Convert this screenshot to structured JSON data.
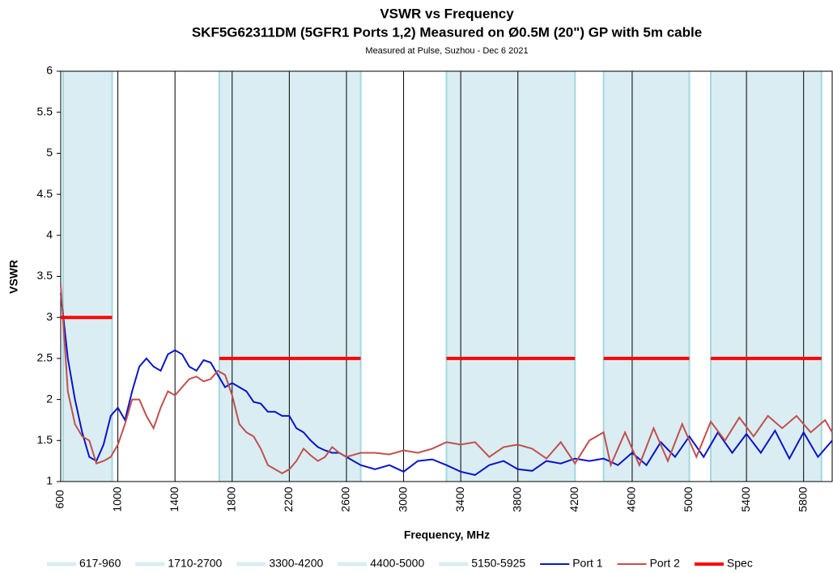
{
  "chart_data": {
    "type": "line",
    "title": "VSWR vs Frequency",
    "subtitle": "SKF5G62311DM (5GFR1 Ports 1,2) Measured on Ø0.5M (20\") GP with 5m cable",
    "note": "Measured at Pulse, Suzhou  - Dec 6 2021",
    "xlabel": "Frequency, MHz",
    "ylabel": "VSWR",
    "xlim": [
      600,
      6000
    ],
    "ylim": [
      1,
      6
    ],
    "xticks": [
      600,
      1000,
      1400,
      1800,
      2200,
      2600,
      3000,
      3400,
      3800,
      4200,
      4600,
      5000,
      5400,
      5800
    ],
    "yticks": [
      1,
      1.5,
      2,
      2.5,
      3,
      3.5,
      4,
      4.5,
      5,
      5.5,
      6
    ],
    "band_color": "#daedf3",
    "band_edge": "#a3d8e0",
    "bands": [
      {
        "name": "617-960",
        "from": 617,
        "to": 960
      },
      {
        "name": "1710-2700",
        "from": 1710,
        "to": 2700
      },
      {
        "name": "3300-4200",
        "from": 3300,
        "to": 4200
      },
      {
        "name": "4400-5000",
        "from": 4400,
        "to": 5000
      },
      {
        "name": "5150-5925",
        "from": 5150,
        "to": 5925
      }
    ],
    "series": [
      {
        "name": "Port 1",
        "color": "#0a14c8",
        "width": 2,
        "x": [
          600,
          650,
          700,
          750,
          800,
          850,
          900,
          950,
          1000,
          1050,
          1100,
          1150,
          1200,
          1250,
          1300,
          1350,
          1400,
          1450,
          1500,
          1550,
          1600,
          1650,
          1700,
          1750,
          1800,
          1850,
          1900,
          1950,
          2000,
          2050,
          2100,
          2150,
          2200,
          2250,
          2300,
          2350,
          2400,
          2450,
          2500,
          2550,
          2600,
          2700,
          2800,
          2900,
          3000,
          3100,
          3200,
          3300,
          3400,
          3500,
          3600,
          3700,
          3800,
          3900,
          4000,
          4100,
          4200,
          4300,
          4400,
          4500,
          4600,
          4700,
          4800,
          4900,
          5000,
          5100,
          5200,
          5300,
          5400,
          5500,
          5600,
          5700,
          5800,
          5900,
          6000
        ],
        "values": [
          3.3,
          2.5,
          2.0,
          1.6,
          1.3,
          1.25,
          1.45,
          1.8,
          1.9,
          1.75,
          2.1,
          2.4,
          2.5,
          2.4,
          2.35,
          2.55,
          2.6,
          2.55,
          2.4,
          2.35,
          2.48,
          2.45,
          2.3,
          2.15,
          2.2,
          2.15,
          2.1,
          1.97,
          1.95,
          1.85,
          1.85,
          1.8,
          1.8,
          1.65,
          1.6,
          1.5,
          1.42,
          1.38,
          1.35,
          1.35,
          1.3,
          1.2,
          1.15,
          1.2,
          1.12,
          1.25,
          1.27,
          1.2,
          1.12,
          1.08,
          1.2,
          1.25,
          1.15,
          1.13,
          1.25,
          1.22,
          1.28,
          1.25,
          1.28,
          1.2,
          1.35,
          1.2,
          1.48,
          1.3,
          1.55,
          1.3,
          1.6,
          1.35,
          1.58,
          1.35,
          1.62,
          1.28,
          1.6,
          1.3,
          1.5
        ]
      },
      {
        "name": "Port 2",
        "color": "#c0504d",
        "width": 2,
        "x": [
          600,
          650,
          700,
          750,
          800,
          850,
          900,
          950,
          1000,
          1050,
          1100,
          1150,
          1200,
          1250,
          1300,
          1350,
          1400,
          1450,
          1500,
          1550,
          1600,
          1650,
          1700,
          1750,
          1800,
          1850,
          1900,
          1950,
          2000,
          2050,
          2100,
          2150,
          2200,
          2250,
          2300,
          2350,
          2400,
          2450,
          2500,
          2550,
          2600,
          2700,
          2800,
          2900,
          3000,
          3100,
          3200,
          3300,
          3400,
          3500,
          3600,
          3700,
          3800,
          3900,
          4000,
          4100,
          4200,
          4300,
          4400,
          4450,
          4550,
          4650,
          4750,
          4850,
          4950,
          5050,
          5150,
          5250,
          5350,
          5450,
          5550,
          5650,
          5750,
          5850,
          5950,
          6000
        ],
        "values": [
          3.4,
          2.1,
          1.7,
          1.55,
          1.5,
          1.22,
          1.25,
          1.3,
          1.45,
          1.7,
          2.0,
          2.0,
          1.8,
          1.65,
          1.9,
          2.1,
          2.05,
          2.15,
          2.25,
          2.28,
          2.22,
          2.25,
          2.35,
          2.3,
          2.05,
          1.7,
          1.6,
          1.55,
          1.4,
          1.2,
          1.15,
          1.1,
          1.15,
          1.25,
          1.4,
          1.32,
          1.25,
          1.3,
          1.42,
          1.35,
          1.3,
          1.35,
          1.35,
          1.33,
          1.38,
          1.35,
          1.4,
          1.48,
          1.45,
          1.48,
          1.3,
          1.42,
          1.45,
          1.4,
          1.28,
          1.48,
          1.22,
          1.5,
          1.6,
          1.2,
          1.6,
          1.2,
          1.65,
          1.25,
          1.7,
          1.3,
          1.73,
          1.5,
          1.78,
          1.55,
          1.8,
          1.65,
          1.8,
          1.6,
          1.75,
          1.6
        ]
      },
      {
        "name": "Spec",
        "color": "#ff0000",
        "width": 4,
        "x": [
          600,
          960,
          null,
          1710,
          2700,
          null,
          3300,
          4200,
          null,
          4400,
          5000,
          null,
          5150,
          5925
        ],
        "values": [
          3,
          3,
          null,
          2.5,
          2.5,
          null,
          2.5,
          2.5,
          null,
          2.5,
          2.5,
          null,
          2.5,
          2.5
        ]
      }
    ]
  }
}
